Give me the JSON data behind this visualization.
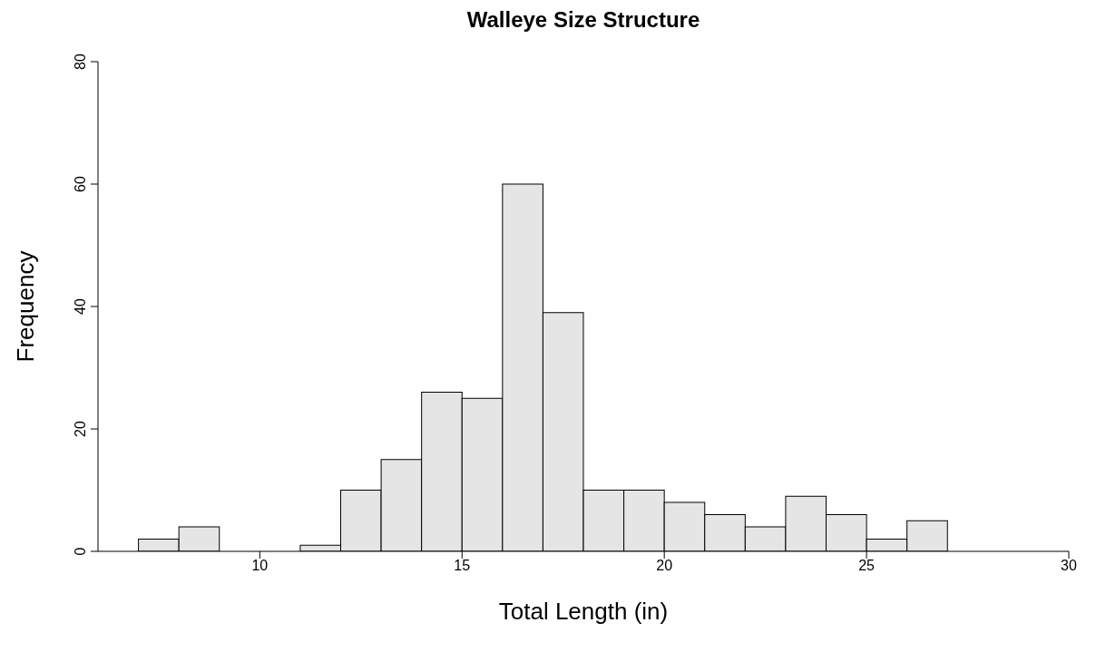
{
  "chart_data": {
    "type": "histogram",
    "title": "Walleye Size Structure",
    "xlabel": "Total Length (in)",
    "ylabel": "Frequency",
    "bins": [
      7,
      8,
      9,
      10,
      11,
      12,
      13,
      14,
      15,
      16,
      17,
      18,
      19,
      20,
      21,
      22,
      23,
      24,
      25,
      26,
      27
    ],
    "values": [
      2,
      4,
      0,
      0,
      1,
      10,
      15,
      26,
      25,
      60,
      39,
      10,
      10,
      8,
      6,
      4,
      9,
      6,
      2,
      5
    ],
    "color": "#e5e5e5",
    "xlim": [
      6,
      30
    ],
    "xticks": [
      10,
      15,
      20,
      25,
      30
    ],
    "ylim": [
      0,
      80
    ],
    "yticks": [
      0,
      20,
      40,
      60,
      80
    ],
    "grid": false
  }
}
